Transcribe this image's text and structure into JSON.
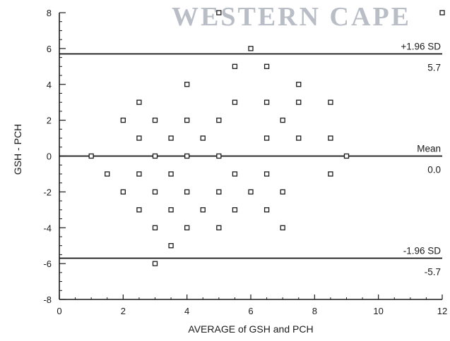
{
  "chart_data": {
    "type": "scatter",
    "title": "",
    "xlabel": "AVERAGE of GSH and PCH",
    "ylabel": "GSH - PCH",
    "xlim": [
      0,
      12
    ],
    "ylim": [
      -8,
      8
    ],
    "x_ticks": [
      0,
      2,
      4,
      6,
      8,
      10,
      12
    ],
    "y_ticks": [
      8,
      6,
      4,
      2,
      0,
      -2,
      -4,
      -6,
      -8
    ],
    "grid": false,
    "watermark": "WESTERN CAPE",
    "reference_lines": [
      {
        "label": "+1.96 SD",
        "value": 5.7,
        "value_label": "5.7"
      },
      {
        "label": "Mean",
        "value": 0.0,
        "value_label": "0.0"
      },
      {
        "label": "-1.96 SD",
        "value": -5.7,
        "value_label": "-5.7"
      }
    ],
    "points": [
      {
        "x": 5,
        "y": 8
      },
      {
        "x": 12,
        "y": 8
      },
      {
        "x": 6,
        "y": 6
      },
      {
        "x": 5.5,
        "y": 5
      },
      {
        "x": 6.5,
        "y": 5
      },
      {
        "x": 4,
        "y": 4
      },
      {
        "x": 7.5,
        "y": 4
      },
      {
        "x": 2.5,
        "y": 3
      },
      {
        "x": 5.5,
        "y": 3
      },
      {
        "x": 6.5,
        "y": 3
      },
      {
        "x": 7.5,
        "y": 3
      },
      {
        "x": 8.5,
        "y": 3
      },
      {
        "x": 2,
        "y": 2
      },
      {
        "x": 3,
        "y": 2
      },
      {
        "x": 4,
        "y": 2
      },
      {
        "x": 5,
        "y": 2
      },
      {
        "x": 7,
        "y": 2
      },
      {
        "x": 2.5,
        "y": 1
      },
      {
        "x": 3.5,
        "y": 1
      },
      {
        "x": 4.5,
        "y": 1
      },
      {
        "x": 6.5,
        "y": 1
      },
      {
        "x": 7.5,
        "y": 1
      },
      {
        "x": 8.5,
        "y": 1
      },
      {
        "x": 1,
        "y": 0
      },
      {
        "x": 3,
        "y": 0
      },
      {
        "x": 4,
        "y": 0
      },
      {
        "x": 5,
        "y": 0
      },
      {
        "x": 9,
        "y": 0
      },
      {
        "x": 1.5,
        "y": -1
      },
      {
        "x": 2.5,
        "y": -1
      },
      {
        "x": 3.5,
        "y": -1
      },
      {
        "x": 5.5,
        "y": -1
      },
      {
        "x": 6.5,
        "y": -1
      },
      {
        "x": 8.5,
        "y": -1
      },
      {
        "x": 2,
        "y": -2
      },
      {
        "x": 3,
        "y": -2
      },
      {
        "x": 4,
        "y": -2
      },
      {
        "x": 5,
        "y": -2
      },
      {
        "x": 6,
        "y": -2
      },
      {
        "x": 7,
        "y": -2
      },
      {
        "x": 2.5,
        "y": -3
      },
      {
        "x": 3.5,
        "y": -3
      },
      {
        "x": 4.5,
        "y": -3
      },
      {
        "x": 5.5,
        "y": -3
      },
      {
        "x": 6.5,
        "y": -3
      },
      {
        "x": 3,
        "y": -4
      },
      {
        "x": 4,
        "y": -4
      },
      {
        "x": 5,
        "y": -4
      },
      {
        "x": 7,
        "y": -4
      },
      {
        "x": 3.5,
        "y": -5
      },
      {
        "x": 3,
        "y": -6
      }
    ]
  }
}
